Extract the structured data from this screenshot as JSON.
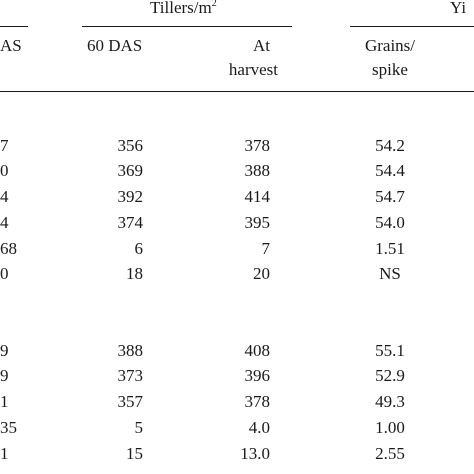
{
  "headers": {
    "tillers_group": "Tillers/m",
    "tillers_sup": "2",
    "yield_group_fragment": "Yi",
    "col0_fragment": "AS",
    "col1": "60 DAS",
    "col2_line1": "At",
    "col2_line2": "harvest",
    "col3_line1": "Grains/",
    "col3_line2": "spike"
  },
  "rows": [
    {
      "c0": "7",
      "c1": "356",
      "c2": "378",
      "c3": "54.2"
    },
    {
      "c0": "0",
      "c1": "369",
      "c2": "388",
      "c3": "54.4"
    },
    {
      "c0": "4",
      "c1": "392",
      "c2": "414",
      "c3": "54.7"
    },
    {
      "c0": "4",
      "c1": "374",
      "c2": "395",
      "c3": "54.0"
    },
    {
      "c0": "68",
      "c1": "6",
      "c2": "7",
      "c3": "1.51"
    },
    {
      "c0": "0",
      "c1": "18",
      "c2": "20",
      "c3": "NS"
    },
    {
      "c0": "9",
      "c1": "388",
      "c2": "408",
      "c3": "55.1"
    },
    {
      "c0": "9",
      "c1": "373",
      "c2": "396",
      "c3": "52.9"
    },
    {
      "c0": "1",
      "c1": "357",
      "c2": "378",
      "c3": "49.3"
    },
    {
      "c0": "35",
      "c1": "5",
      "c2": "4.0",
      "c3": "1.00"
    },
    {
      "c0": "1",
      "c1": "15",
      "c2": "13.0",
      "c3": "2.55"
    }
  ]
}
